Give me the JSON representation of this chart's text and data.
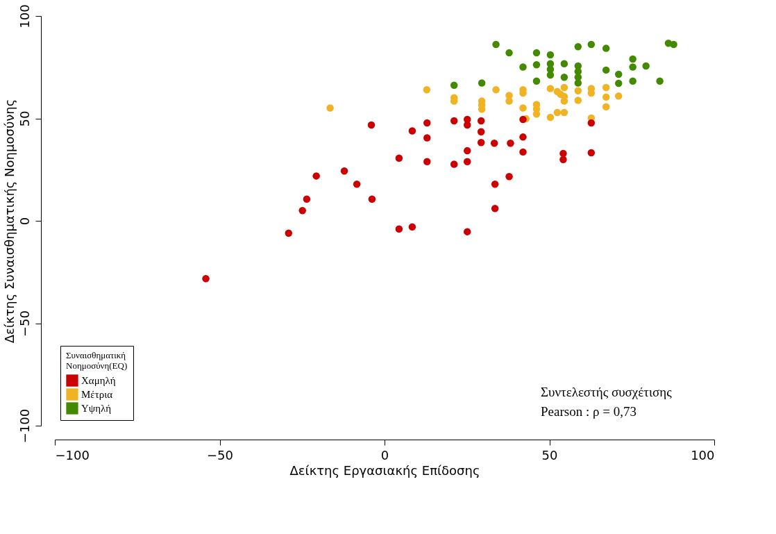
{
  "chart_data": {
    "type": "scatter",
    "xlabel": "Δείκτης Εργασιακής Επίδοσης",
    "ylabel": "Δείκτης Συναισθηματικής Νοημοσύνης",
    "legend_title": "Συναισθηματική Νοημοσύνη(EQ)",
    "legend": "bottom left",
    "grid": false,
    "marker": "circle",
    "xlim": [
      -100,
      100
    ],
    "xticks": [
      -100,
      -50,
      0,
      50,
      100
    ],
    "ylim": [
      -100,
      100
    ],
    "yticks": [
      -100,
      -50,
      0,
      50,
      100
    ],
    "annotations": [
      "Συντελεστής συσχέτισης",
      "Pearson : ρ = 0,73"
    ],
    "series": [
      {
        "name": "Χαμηλή",
        "color": "#cc0000",
        "x": [
          -54.2,
          -29.1,
          -24.9,
          -23.6,
          -20.7,
          -12.2,
          -8.4,
          -3.8,
          -4.0,
          4.4,
          4.4,
          8.4,
          8.4,
          12.9,
          12.9,
          12.9,
          21.1,
          21.1,
          25.1,
          25.1,
          25.1,
          25.1,
          25.1,
          29.3,
          29.3,
          29.3,
          33.3,
          33.5,
          33.5,
          38.2,
          37.8,
          42.0,
          42.0,
          42.0,
          54.2,
          54.2,
          62.7,
          62.7
        ],
        "values": [
          -28.2,
          -6.0,
          5.0,
          10.6,
          21.9,
          24.3,
          17.9,
          10.6,
          46.8,
          -4.0,
          30.6,
          -3.0,
          43.9,
          40.5,
          28.9,
          47.8,
          27.6,
          48.8,
          49.5,
          46.8,
          34.2,
          28.9,
          -5.3,
          48.8,
          43.5,
          38.2,
          37.9,
          17.9,
          6.0,
          37.9,
          21.6,
          49.5,
          40.9,
          33.6,
          32.9,
          29.9,
          47.8,
          33.2
        ]
      },
      {
        "name": "Μέτρια",
        "color": "#f0b323",
        "x": [
          -16.5,
          12.8,
          21.1,
          21.1,
          29.5,
          29.5,
          29.5,
          33.8,
          37.8,
          37.8,
          42.0,
          42.0,
          42.0,
          42.9,
          46.1,
          46.1,
          46.1,
          50.3,
          50.3,
          52.4,
          53.4,
          54.5,
          54.5,
          54.5,
          52.4,
          54.5,
          58.7,
          58.7,
          62.7,
          62.7,
          62.7,
          67.2,
          67.2,
          67.2,
          71.0
        ],
        "values": [
          55.1,
          64.0,
          60.1,
          58.5,
          58.5,
          56.5,
          54.5,
          64.0,
          61.2,
          58.5,
          64.0,
          62.4,
          55.1,
          49.8,
          56.8,
          54.6,
          52.1,
          64.6,
          50.5,
          63.1,
          61.8,
          65.1,
          60.7,
          58.5,
          52.9,
          52.9,
          63.5,
          58.8,
          64.6,
          62.4,
          50.2,
          65.1,
          60.4,
          55.7,
          60.9
        ]
      },
      {
        "name": "Υψηλή",
        "color": "#438a00",
        "x": [
          21.1,
          29.5,
          33.8,
          37.8,
          42.0,
          46.1,
          46.1,
          46.1,
          50.3,
          50.3,
          50.3,
          50.3,
          54.5,
          54.5,
          58.7,
          58.7,
          58.7,
          58.7,
          58.7,
          62.7,
          67.2,
          67.2,
          71.0,
          71.0,
          75.3,
          75.3,
          75.3,
          79.3,
          83.5,
          86.1,
          87.7
        ],
        "values": [
          66.2,
          67.3,
          86.1,
          82.0,
          75.1,
          82.0,
          76.2,
          68.2,
          81.0,
          76.7,
          74.0,
          71.2,
          76.7,
          70.1,
          85.0,
          75.6,
          72.9,
          70.1,
          67.3,
          86.1,
          84.2,
          73.6,
          71.5,
          67.1,
          79.0,
          75.1,
          68.2,
          75.6,
          68.2,
          86.7,
          86.1
        ]
      }
    ]
  }
}
